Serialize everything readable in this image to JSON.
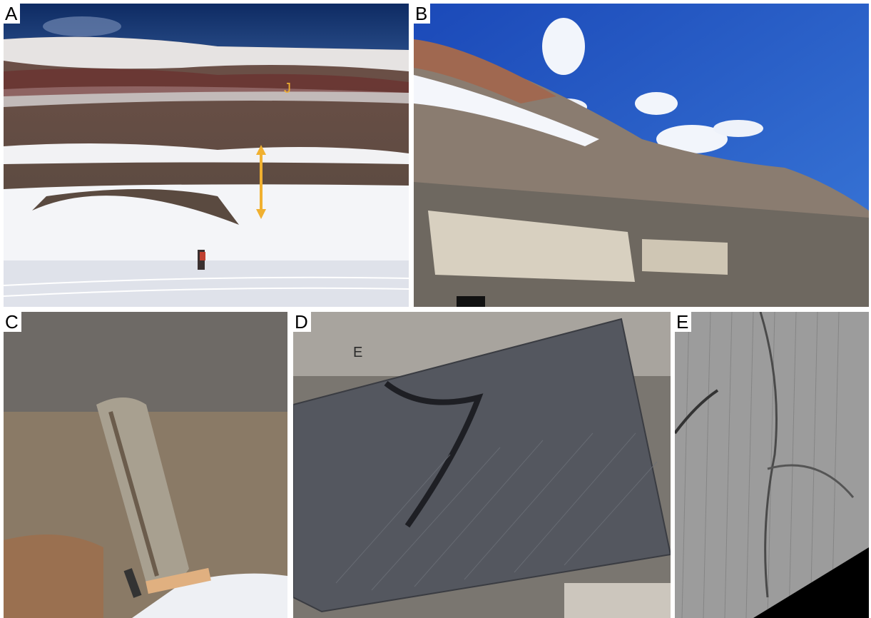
{
  "panels": [
    {
      "label": "A",
      "annotations": [
        "J"
      ]
    },
    {
      "label": "B"
    },
    {
      "label": "C"
    },
    {
      "label": "D",
      "annotations": [
        "E"
      ]
    },
    {
      "label": "E"
    }
  ]
}
